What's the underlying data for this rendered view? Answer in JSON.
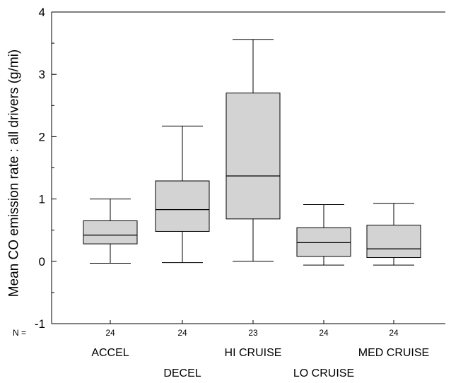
{
  "chart_data": {
    "type": "box",
    "ylabel": "Mean CO emission rate : all drivers   (g/mi)",
    "xlabel": "",
    "ylim": [
      -1,
      4
    ],
    "yticks": [
      "-1",
      "0",
      "1",
      "2",
      "3",
      "4"
    ],
    "n_label": "N =",
    "grid": false,
    "categories": [
      "ACCEL",
      "DECEL",
      "HI CRUISE",
      "LO CRUISE",
      "MED CRUISE"
    ],
    "n": [
      "24",
      "24",
      "23",
      "24",
      "24"
    ],
    "boxes": [
      {
        "whisker_low": -0.03,
        "q1": 0.28,
        "median": 0.42,
        "q3": 0.65,
        "whisker_high": 1.0
      },
      {
        "whisker_low": -0.02,
        "q1": 0.48,
        "median": 0.83,
        "q3": 1.29,
        "whisker_high": 2.17
      },
      {
        "whisker_low": 0.0,
        "q1": 0.68,
        "median": 1.37,
        "q3": 2.7,
        "whisker_high": 3.56
      },
      {
        "whisker_low": -0.06,
        "q1": 0.08,
        "median": 0.3,
        "q3": 0.54,
        "whisker_high": 0.91
      },
      {
        "whisker_low": -0.06,
        "q1": 0.06,
        "median": 0.2,
        "q3": 0.58,
        "whisker_high": 0.93
      }
    ],
    "colors": {
      "box_fill": "#d3d3d3",
      "line": "#000000"
    }
  }
}
